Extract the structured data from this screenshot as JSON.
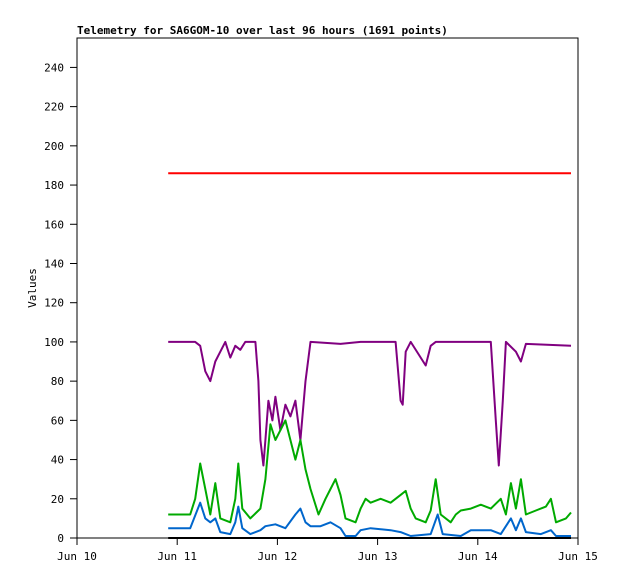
{
  "chart_data": {
    "type": "line",
    "title": "Telemetry for SA6GOM-10 over last 96 hours (1691 points)",
    "xlabel": "",
    "ylabel": "Values",
    "x_units": "days after Jun 10 00:00",
    "xlim": [
      0,
      5
    ],
    "ylim": [
      0,
      255
    ],
    "yticks": [
      0,
      20,
      40,
      60,
      80,
      100,
      120,
      140,
      160,
      180,
      200,
      220,
      240
    ],
    "xticks": [
      {
        "value": 0,
        "label": "Jun 10"
      },
      {
        "value": 1,
        "label": "Jun 11"
      },
      {
        "value": 2,
        "label": "Jun 12"
      },
      {
        "value": 3,
        "label": "Jun 13"
      },
      {
        "value": 4,
        "label": "Jun 14"
      },
      {
        "value": 5,
        "label": "Jun 15"
      }
    ],
    "grid": false,
    "legend": "none",
    "series": [
      {
        "name": "red",
        "color": "#ff0000",
        "points": [
          [
            0.91,
            186
          ],
          [
            4.93,
            186
          ]
        ]
      },
      {
        "name": "purple",
        "color": "#800080",
        "points": [
          [
            0.91,
            100
          ],
          [
            1.18,
            100
          ],
          [
            1.23,
            98
          ],
          [
            1.28,
            85
          ],
          [
            1.33,
            80
          ],
          [
            1.38,
            90
          ],
          [
            1.43,
            95
          ],
          [
            1.48,
            100
          ],
          [
            1.53,
            92
          ],
          [
            1.58,
            98
          ],
          [
            1.63,
            96
          ],
          [
            1.68,
            100
          ],
          [
            1.78,
            100
          ],
          [
            1.81,
            80
          ],
          [
            1.83,
            50
          ],
          [
            1.86,
            37
          ],
          [
            1.88,
            50
          ],
          [
            1.91,
            70
          ],
          [
            1.95,
            60
          ],
          [
            1.98,
            72
          ],
          [
            2.03,
            55
          ],
          [
            2.08,
            68
          ],
          [
            2.13,
            62
          ],
          [
            2.18,
            70
          ],
          [
            2.23,
            50
          ],
          [
            2.28,
            80
          ],
          [
            2.33,
            100
          ],
          [
            2.63,
            99
          ],
          [
            2.83,
            100
          ],
          [
            3.18,
            100
          ],
          [
            3.23,
            70
          ],
          [
            3.25,
            68
          ],
          [
            3.28,
            95
          ],
          [
            3.33,
            100
          ],
          [
            3.43,
            92
          ],
          [
            3.48,
            88
          ],
          [
            3.53,
            98
          ],
          [
            3.58,
            100
          ],
          [
            4.13,
            100
          ],
          [
            4.18,
            60
          ],
          [
            4.21,
            37
          ],
          [
            4.25,
            70
          ],
          [
            4.28,
            100
          ],
          [
            4.38,
            95
          ],
          [
            4.43,
            90
          ],
          [
            4.48,
            99
          ],
          [
            4.93,
            98
          ]
        ]
      },
      {
        "name": "green",
        "color": "#00aa00",
        "points": [
          [
            0.91,
            12
          ],
          [
            1.13,
            12
          ],
          [
            1.18,
            20
          ],
          [
            1.23,
            38
          ],
          [
            1.28,
            25
          ],
          [
            1.33,
            12
          ],
          [
            1.38,
            28
          ],
          [
            1.43,
            10
          ],
          [
            1.53,
            8
          ],
          [
            1.58,
            20
          ],
          [
            1.61,
            38
          ],
          [
            1.65,
            15
          ],
          [
            1.73,
            10
          ],
          [
            1.83,
            15
          ],
          [
            1.88,
            30
          ],
          [
            1.93,
            58
          ],
          [
            1.98,
            50
          ],
          [
            2.03,
            55
          ],
          [
            2.08,
            60
          ],
          [
            2.13,
            50
          ],
          [
            2.18,
            40
          ],
          [
            2.23,
            50
          ],
          [
            2.28,
            35
          ],
          [
            2.33,
            25
          ],
          [
            2.41,
            12
          ],
          [
            2.48,
            20
          ],
          [
            2.53,
            25
          ],
          [
            2.58,
            30
          ],
          [
            2.63,
            22
          ],
          [
            2.68,
            10
          ],
          [
            2.78,
            8
          ],
          [
            2.83,
            15
          ],
          [
            2.88,
            20
          ],
          [
            2.93,
            18
          ],
          [
            3.03,
            20
          ],
          [
            3.13,
            18
          ],
          [
            3.23,
            22
          ],
          [
            3.28,
            24
          ],
          [
            3.33,
            15
          ],
          [
            3.38,
            10
          ],
          [
            3.48,
            8
          ],
          [
            3.53,
            14
          ],
          [
            3.58,
            30
          ],
          [
            3.63,
            12
          ],
          [
            3.73,
            8
          ],
          [
            3.78,
            12
          ],
          [
            3.83,
            14
          ],
          [
            3.93,
            15
          ],
          [
            4.03,
            17
          ],
          [
            4.13,
            15
          ],
          [
            4.23,
            20
          ],
          [
            4.28,
            12
          ],
          [
            4.33,
            28
          ],
          [
            4.38,
            15
          ],
          [
            4.43,
            30
          ],
          [
            4.48,
            12
          ],
          [
            4.58,
            14
          ],
          [
            4.68,
            16
          ],
          [
            4.73,
            20
          ],
          [
            4.78,
            8
          ],
          [
            4.88,
            10
          ],
          [
            4.93,
            13
          ]
        ]
      },
      {
        "name": "blue",
        "color": "#0066cc",
        "points": [
          [
            0.91,
            5
          ],
          [
            1.13,
            5
          ],
          [
            1.23,
            18
          ],
          [
            1.28,
            10
          ],
          [
            1.33,
            8
          ],
          [
            1.38,
            10
          ],
          [
            1.43,
            3
          ],
          [
            1.53,
            2
          ],
          [
            1.58,
            8
          ],
          [
            1.61,
            16
          ],
          [
            1.65,
            5
          ],
          [
            1.73,
            2
          ],
          [
            1.83,
            4
          ],
          [
            1.88,
            6
          ],
          [
            1.98,
            7
          ],
          [
            2.08,
            5
          ],
          [
            2.18,
            12
          ],
          [
            2.23,
            15
          ],
          [
            2.28,
            8
          ],
          [
            2.33,
            6
          ],
          [
            2.43,
            6
          ],
          [
            2.53,
            8
          ],
          [
            2.63,
            5
          ],
          [
            2.68,
            1
          ],
          [
            2.78,
            1
          ],
          [
            2.83,
            4
          ],
          [
            2.93,
            5
          ],
          [
            3.13,
            4
          ],
          [
            3.23,
            3
          ],
          [
            3.28,
            2
          ],
          [
            3.33,
            1
          ],
          [
            3.53,
            2
          ],
          [
            3.6,
            12
          ],
          [
            3.65,
            2
          ],
          [
            3.83,
            1
          ],
          [
            3.93,
            4
          ],
          [
            4.13,
            4
          ],
          [
            4.23,
            2
          ],
          [
            4.33,
            10
          ],
          [
            4.38,
            4
          ],
          [
            4.43,
            10
          ],
          [
            4.48,
            3
          ],
          [
            4.63,
            2
          ],
          [
            4.73,
            4
          ],
          [
            4.78,
            1
          ],
          [
            4.93,
            1
          ]
        ]
      },
      {
        "name": "black",
        "color": "#000000",
        "points": [
          [
            0.91,
            0
          ],
          [
            4.93,
            0
          ]
        ]
      }
    ]
  }
}
